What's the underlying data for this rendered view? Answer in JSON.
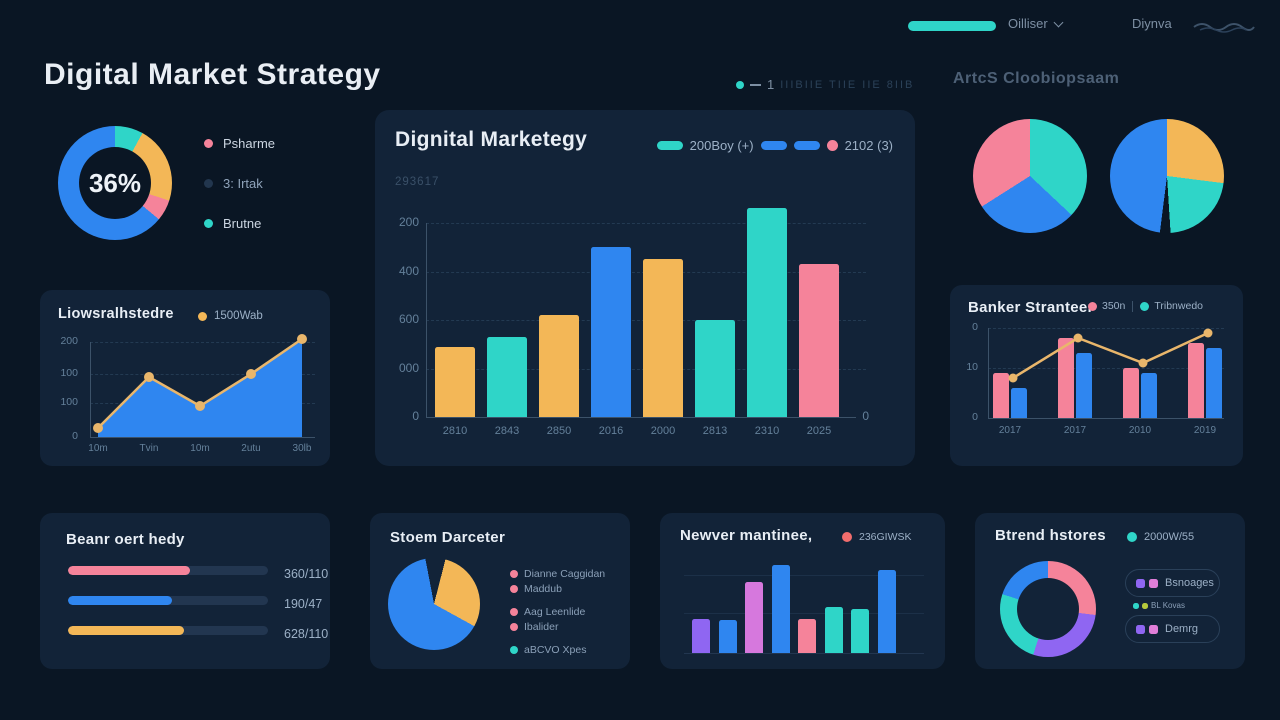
{
  "topbar": {
    "nav": [
      {
        "label": "Oilliser"
      },
      {
        "label": "Diynva"
      }
    ]
  },
  "header": {
    "title": "Digital Market Strategy",
    "note_number": "1",
    "note_ticks": "IIIBIIE TIIE IIE 8IIB",
    "right_text": "ArtcS Cloobiopsaam"
  },
  "colors": {
    "background": "#0a1624",
    "card": "#122338",
    "blue": "#2f86f0",
    "teal": "#2fd5c8",
    "orange": "#f3b757",
    "pink": "#f5839a",
    "purple": "#8f66f2",
    "orchid": "#d678dd",
    "red": "#f26d6d",
    "olive": "#b5c93c",
    "line_orange": "#e9b66b"
  },
  "chart_data": [
    {
      "id": "overview-donut",
      "type": "donut",
      "center_label": "36%",
      "slices": [
        {
          "color": "#2fd5c8",
          "value": 8
        },
        {
          "color": "#f3b757",
          "value": 22
        },
        {
          "color": "#f5839a",
          "value": 6
        },
        {
          "color": "#2f86f0",
          "value": 64
        }
      ],
      "legend": [
        {
          "label": "Psharme",
          "color": "#f5839a"
        },
        {
          "label": "3: Irtak",
          "color": "#22364e"
        },
        {
          "label": "Brutne",
          "color": "#2fd5c8"
        }
      ]
    },
    {
      "id": "main-bar-chart",
      "type": "bar",
      "title": "Dignital Marketegy",
      "subtitle": "293617",
      "legend": [
        {
          "label": "200Boy (+)",
          "color": "#2fd5c8",
          "shape": "pill"
        },
        {
          "label": "",
          "color": "#2f86f0",
          "shape": "pill"
        },
        {
          "label": "",
          "color": "#2f86f0",
          "shape": "pill"
        },
        {
          "label": "2102 (3)",
          "color": "#f5839a",
          "shape": "dot"
        }
      ],
      "categories": [
        "2810",
        "2843",
        "2850",
        "2016",
        "2000",
        "2813",
        "2310",
        "2025"
      ],
      "values": [
        290,
        330,
        420,
        700,
        650,
        400,
        860,
        630
      ],
      "bar_colors": [
        "#f3b757",
        "#2fd5c8",
        "#f3b757",
        "#2f86f0",
        "#f3b757",
        "#2fd5c8",
        "#2fd5c8",
        "#f5839a"
      ],
      "y_ticks": [
        "200",
        "400",
        "600",
        "000",
        "0"
      ],
      "x_end_label": "0",
      "ylim": [
        0,
        900
      ],
      "grid": true,
      "legend_position": "top-right"
    },
    {
      "id": "pie-small-left",
      "type": "pie",
      "slices": [
        {
          "color": "#2fd5c8",
          "value": 37
        },
        {
          "color": "#2f86f0",
          "value": 29
        },
        {
          "color": "#f5839a",
          "value": 34
        }
      ]
    },
    {
      "id": "pie-small-right",
      "type": "pie",
      "slices": [
        {
          "color": "#f3b757",
          "value": 27
        },
        {
          "color": "#2fd5c8",
          "value": 22
        },
        {
          "color": "#0a1624",
          "value": 3
        },
        {
          "color": "#2f86f0",
          "value": 48
        }
      ]
    },
    {
      "id": "area-line-chart",
      "type": "area",
      "title": "Liowsralhstedre",
      "legend": [
        {
          "label": "1500Wab",
          "color": "#f3b757"
        }
      ],
      "x_labels": [
        "10m",
        "Tvin",
        "10m",
        "2utu",
        "30lb"
      ],
      "values": [
        15,
        95,
        50,
        100,
        155
      ],
      "y_ticks": [
        "200",
        "100",
        "100",
        "0"
      ],
      "ylim": [
        0,
        170
      ],
      "area_color": "#2f86f0",
      "line_color": "#e9b66b"
    },
    {
      "id": "grouped-bar-line-chart",
      "type": "bar+line",
      "title": "Banker Stranteer",
      "legend": [
        {
          "label": "350n",
          "color": "#f5839a"
        },
        {
          "label": "Tribnwedo",
          "color": "#2fd5c8"
        }
      ],
      "categories": [
        "2017",
        "2017",
        "2010",
        "2019"
      ],
      "series": [
        {
          "name": "pink",
          "color": "#f5839a",
          "values": [
            9,
            16,
            10,
            15
          ]
        },
        {
          "name": "blue",
          "color": "#2f86f0",
          "values": [
            6,
            13,
            9,
            14
          ]
        }
      ],
      "line": {
        "color": "#e9b66b",
        "values": [
          8,
          16,
          11,
          17
        ]
      },
      "y_ticks": [
        "0",
        "10",
        "0"
      ],
      "ylim": [
        0,
        20
      ]
    },
    {
      "id": "progress-list",
      "type": "bar",
      "title": "Beanr oert hedy",
      "items": [
        {
          "label": "360/110",
          "percent": 61,
          "color": "#f5839a"
        },
        {
          "label": "190/47",
          "percent": 52,
          "color": "#2f86f0"
        },
        {
          "label": "628/110",
          "percent": 58,
          "color": "#f3b757"
        }
      ]
    },
    {
      "id": "category-pie",
      "type": "pie",
      "title": "Stoem Darceter",
      "slices": [
        {
          "color": "#122338",
          "value": 4
        },
        {
          "color": "#f3b757",
          "value": 29
        },
        {
          "color": "#2f86f0",
          "value": 64
        },
        {
          "color": "#122338",
          "value": 3
        }
      ],
      "legend": [
        {
          "label": "Dianne Caggidan",
          "color": "#f5839a"
        },
        {
          "label": "Maddub",
          "color": "#f5839a"
        },
        {
          "label": "Aag Leenlide",
          "color": "#f5839a"
        },
        {
          "label": "Ibalider",
          "color": "#f5839a"
        },
        {
          "label": "aBCVO Xpes",
          "color": "#2fd5c8"
        }
      ]
    },
    {
      "id": "mini-bar-chart",
      "type": "bar",
      "title": "Newver mantinee,",
      "legend": [
        {
          "label": "236GIWSK",
          "color": "#f26d6d"
        }
      ],
      "values": [
        29,
        28,
        60,
        74,
        29,
        39,
        37,
        70
      ],
      "bar_colors": [
        "#8f66f2",
        "#2f86f0",
        "#d678dd",
        "#2f86f0",
        "#f5839a",
        "#2fd5c8",
        "#2fd5c8",
        "#2f86f0"
      ],
      "ylim": [
        0,
        80
      ]
    },
    {
      "id": "trend-donut",
      "type": "donut",
      "title": "Btrend hstores",
      "legend": [
        {
          "label": "2000W/55",
          "color": "#2fd5c8"
        }
      ],
      "slices": [
        {
          "color": "#f5839a",
          "value": 27
        },
        {
          "color": "#8f66f2",
          "value": 28
        },
        {
          "color": "#2fd5c8",
          "value": 25
        },
        {
          "color": "#2f86f0",
          "value": 20
        }
      ],
      "badges": [
        {
          "label": "Bsnoages",
          "dots": [
            "#8f66f2",
            "#e07ed8"
          ],
          "sub_label": "BL Kovas",
          "sub_dots": [
            "#2fd5c8",
            "#b5c93c"
          ]
        },
        {
          "label": "Demrg",
          "dots": [
            "#8f66f2",
            "#e07ed8"
          ]
        }
      ]
    }
  ]
}
